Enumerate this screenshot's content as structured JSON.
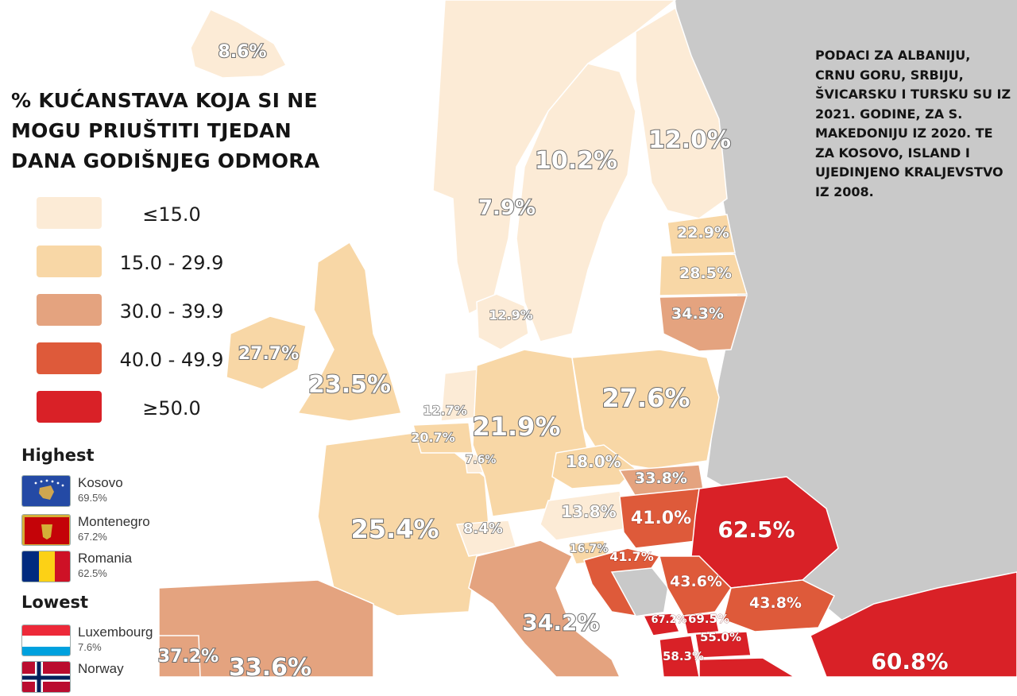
{
  "title": "% KUĆANSTAVA KOJA SI NE MOGU PRIUŠTITI TJEDAN DANA GODIŠNJEG ODMORA",
  "note": "PODACI ZA ALBANIJU, CRNU GORU, SRBIJU, ŠVICARSKU I TURSKU SU IZ 2021. GODINE, ZA S. MAKEDONIJU IZ 2020. TE ZA KOSOVO, ISLAND I UJEDINJENO KRALJEVSTVO IZ 2008.",
  "legend": [
    {
      "label": "≤15.0",
      "color": "#fcebd6"
    },
    {
      "label": "15.0 - 29.9",
      "color": "#f8d7a6"
    },
    {
      "label": "30.0 - 39.9",
      "color": "#e4a37f"
    },
    {
      "label": "40.0 - 49.9",
      "color": "#de5a3a"
    },
    {
      "label": "≥50.0",
      "color": "#d92127"
    }
  ],
  "highest": {
    "heading": "Highest",
    "items": [
      {
        "name": "Kosovo",
        "value": "69.5%",
        "flag": "kosovo-flag"
      },
      {
        "name": "Montenegro",
        "value": "67.2%",
        "flag": "montenegro-flag"
      },
      {
        "name": "Romania",
        "value": "62.5%",
        "flag": "romania-flag"
      }
    ]
  },
  "lowest": {
    "heading": "Lowest",
    "items": [
      {
        "name": "Luxembourg",
        "value": "7.6%",
        "flag": "luxembourg-flag"
      },
      {
        "name": "Norway",
        "value": "",
        "flag": "norway-flag"
      }
    ]
  },
  "country_labels": [
    {
      "text": "8.6%",
      "tier": 0
    },
    {
      "text": "10.2%",
      "tier": 0
    },
    {
      "text": "12.0%",
      "tier": 0
    },
    {
      "text": "7.9%",
      "tier": 0
    },
    {
      "text": "22.9%",
      "tier": 1
    },
    {
      "text": "28.5%",
      "tier": 1
    },
    {
      "text": "34.3%",
      "tier": 2
    },
    {
      "text": "12.9%",
      "tier": 0
    },
    {
      "text": "27.7%",
      "tier": 1
    },
    {
      "text": "23.5%",
      "tier": 1
    },
    {
      "text": "12.7%",
      "tier": 0
    },
    {
      "text": "20.7%",
      "tier": 1
    },
    {
      "text": "7.6%",
      "tier": 0
    },
    {
      "text": "21.9%",
      "tier": 1
    },
    {
      "text": "27.6%",
      "tier": 1
    },
    {
      "text": "18.0%",
      "tier": 1
    },
    {
      "text": "33.8%",
      "tier": 2
    },
    {
      "text": "13.8%",
      "tier": 0
    },
    {
      "text": "41.0%",
      "tier": 3
    },
    {
      "text": "62.5%",
      "tier": 4
    },
    {
      "text": "25.4%",
      "tier": 1
    },
    {
      "text": "8.4%",
      "tier": 0
    },
    {
      "text": "16.7%",
      "tier": 1
    },
    {
      "text": "41.7%",
      "tier": 3
    },
    {
      "text": "43.6%",
      "tier": 3
    },
    {
      "text": "43.8%",
      "tier": 3
    },
    {
      "text": "67.2%",
      "tier": 4
    },
    {
      "text": "69.5%",
      "tier": 4
    },
    {
      "text": "55.0%",
      "tier": 4
    },
    {
      "text": "58.3%",
      "tier": 4
    },
    {
      "text": "34.2%",
      "tier": 2
    },
    {
      "text": "37.2%",
      "tier": 2
    },
    {
      "text": "33.6%",
      "tier": 2
    },
    {
      "text": "60.8%",
      "tier": 4
    }
  ]
}
